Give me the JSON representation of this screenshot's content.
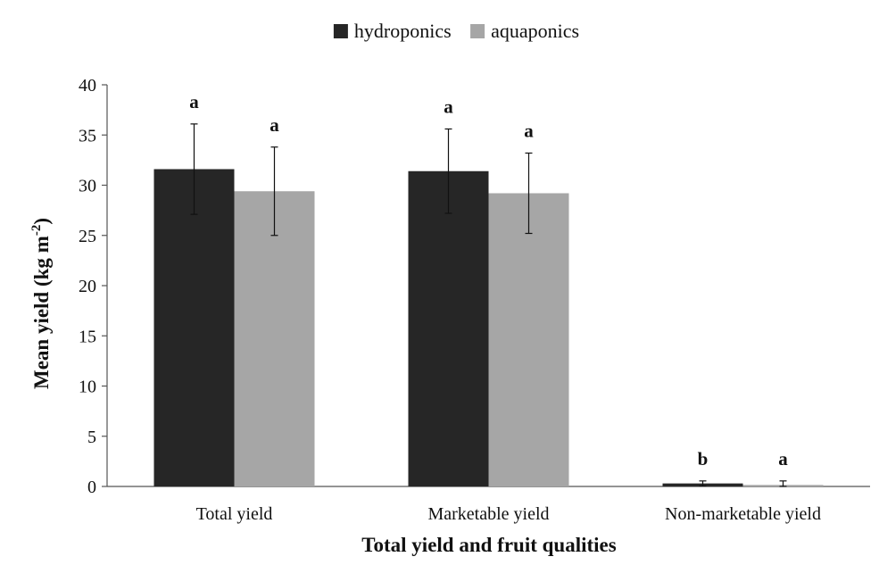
{
  "chart_data": {
    "type": "bar",
    "title": "",
    "xlabel": "Total yield and fruit qualities",
    "ylabel": "Mean yield (kg m",
    "ylabel_superscript": "-2",
    "ylabel_suffix": ")",
    "ylim": [
      0,
      40
    ],
    "yticks": [
      0,
      5,
      10,
      15,
      20,
      25,
      30,
      35,
      40
    ],
    "grid": false,
    "legend_position": "top-center",
    "categories": [
      "Total yield",
      "Marketable yield",
      "Non-marketable yield"
    ],
    "series": [
      {
        "name": "hydroponics",
        "color": "#262626",
        "values": [
          31.6,
          31.4,
          0.3
        ],
        "error": [
          4.5,
          4.2,
          0.25
        ],
        "letters": [
          "a",
          "a",
          "b"
        ]
      },
      {
        "name": "aquaponics",
        "color": "#a6a6a6",
        "values": [
          29.4,
          29.2,
          0.15
        ],
        "error": [
          4.4,
          4.0,
          0.4
        ],
        "letters": [
          "a",
          "a",
          "a"
        ]
      }
    ]
  }
}
